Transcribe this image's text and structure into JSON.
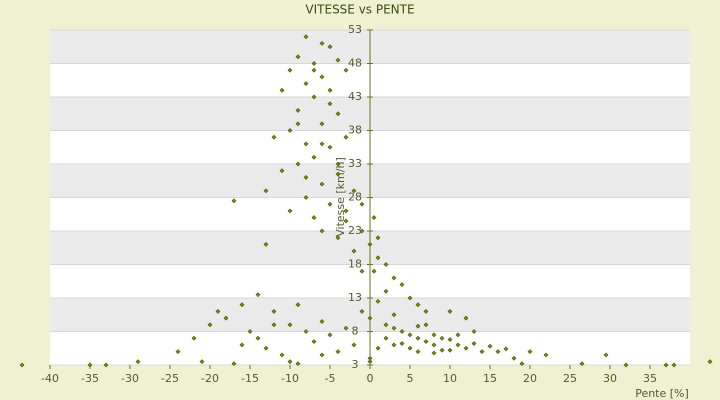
{
  "chart_data": {
    "type": "scatter",
    "title": "VITESSE vs PENTE",
    "x_label": "Pente [%]",
    "y_label": "Vitesse [km/h]",
    "color": "#7a8c10",
    "grid": true,
    "xlim": [
      -40,
      40
    ],
    "xticks": [
      -40,
      -35,
      -30,
      -25,
      -20,
      -15,
      -10,
      -5,
      0,
      5,
      10,
      15,
      20,
      25,
      30,
      35
    ],
    "ylim": [
      3,
      53
    ],
    "yticks": [
      3,
      8,
      13,
      18,
      23,
      28,
      33,
      38,
      43,
      48,
      53
    ],
    "x": [
      -8,
      -6,
      -5,
      -9,
      -7,
      -10,
      -4,
      -6,
      -8,
      -3,
      -11,
      -7,
      -5,
      -9,
      -4,
      -6,
      -10,
      -12,
      -8,
      -5,
      -3,
      -7,
      -9,
      -11,
      -4,
      -6,
      -13,
      -8,
      -2,
      -5,
      -10,
      -7,
      -3,
      -17,
      -13,
      -6,
      -1,
      0.5,
      -4,
      -2,
      0,
      1,
      2,
      -1,
      3,
      4,
      2,
      5,
      1,
      6,
      -1,
      0,
      3,
      7,
      10,
      12,
      2,
      3,
      4,
      5,
      6,
      7,
      8,
      9,
      10,
      11,
      12,
      13,
      14,
      15,
      4,
      5,
      6,
      7,
      8,
      9,
      3,
      2,
      1,
      6,
      8,
      10,
      11,
      16,
      17,
      18,
      20,
      22,
      19,
      13,
      -14,
      -16,
      -18,
      -12,
      -10,
      -8,
      -6,
      -15,
      -20,
      -22,
      -24,
      -21,
      -17,
      -13,
      -11,
      -9,
      -7,
      -5,
      -4,
      -3,
      -14,
      -12,
      -9,
      -16,
      -19,
      -10,
      -6,
      -2,
      0,
      0,
      -43.5,
      -35,
      -33,
      -29,
      26.5,
      29.5,
      32,
      37,
      38,
      42.5,
      -7,
      -5,
      -9,
      -6,
      -4,
      -8,
      -3,
      -1,
      1,
      0.5
    ],
    "values": [
      52,
      51,
      50.5,
      49,
      48,
      47,
      48.5,
      46,
      45,
      47,
      44,
      43,
      42,
      41,
      40.5,
      39,
      38,
      37,
      36,
      35.5,
      37,
      34,
      33,
      32,
      31.5,
      30,
      29,
      28,
      29,
      27,
      26,
      25,
      24.5,
      27.5,
      21,
      23,
      27,
      25,
      22,
      20,
      21,
      19,
      18,
      17,
      16,
      15,
      14,
      13,
      12.5,
      12,
      11,
      10,
      10.5,
      11,
      11,
      10,
      9,
      8.5,
      8,
      7.5,
      7,
      6.5,
      6,
      7,
      6.8,
      6,
      5.5,
      6.2,
      5,
      5.8,
      6.2,
      5.5,
      8.8,
      9,
      7.5,
      5.2,
      6,
      7,
      5.5,
      5,
      4.8,
      5.2,
      7.5,
      5,
      5.4,
      4,
      5,
      4.5,
      3.2,
      8,
      13.5,
      12,
      10,
      11,
      9,
      8,
      9.5,
      8,
      9,
      7,
      5,
      3.5,
      3.2,
      5.5,
      4.5,
      3.2,
      6.5,
      7.5,
      5,
      8.5,
      7,
      9,
      12,
      6,
      11,
      3.5,
      4.5,
      6,
      4,
      3.5,
      3,
      3,
      3,
      3.5,
      3.2,
      4.5,
      3,
      3,
      3,
      3.5,
      47,
      44,
      39,
      36,
      33,
      31,
      26,
      23,
      22,
      17
    ]
  }
}
